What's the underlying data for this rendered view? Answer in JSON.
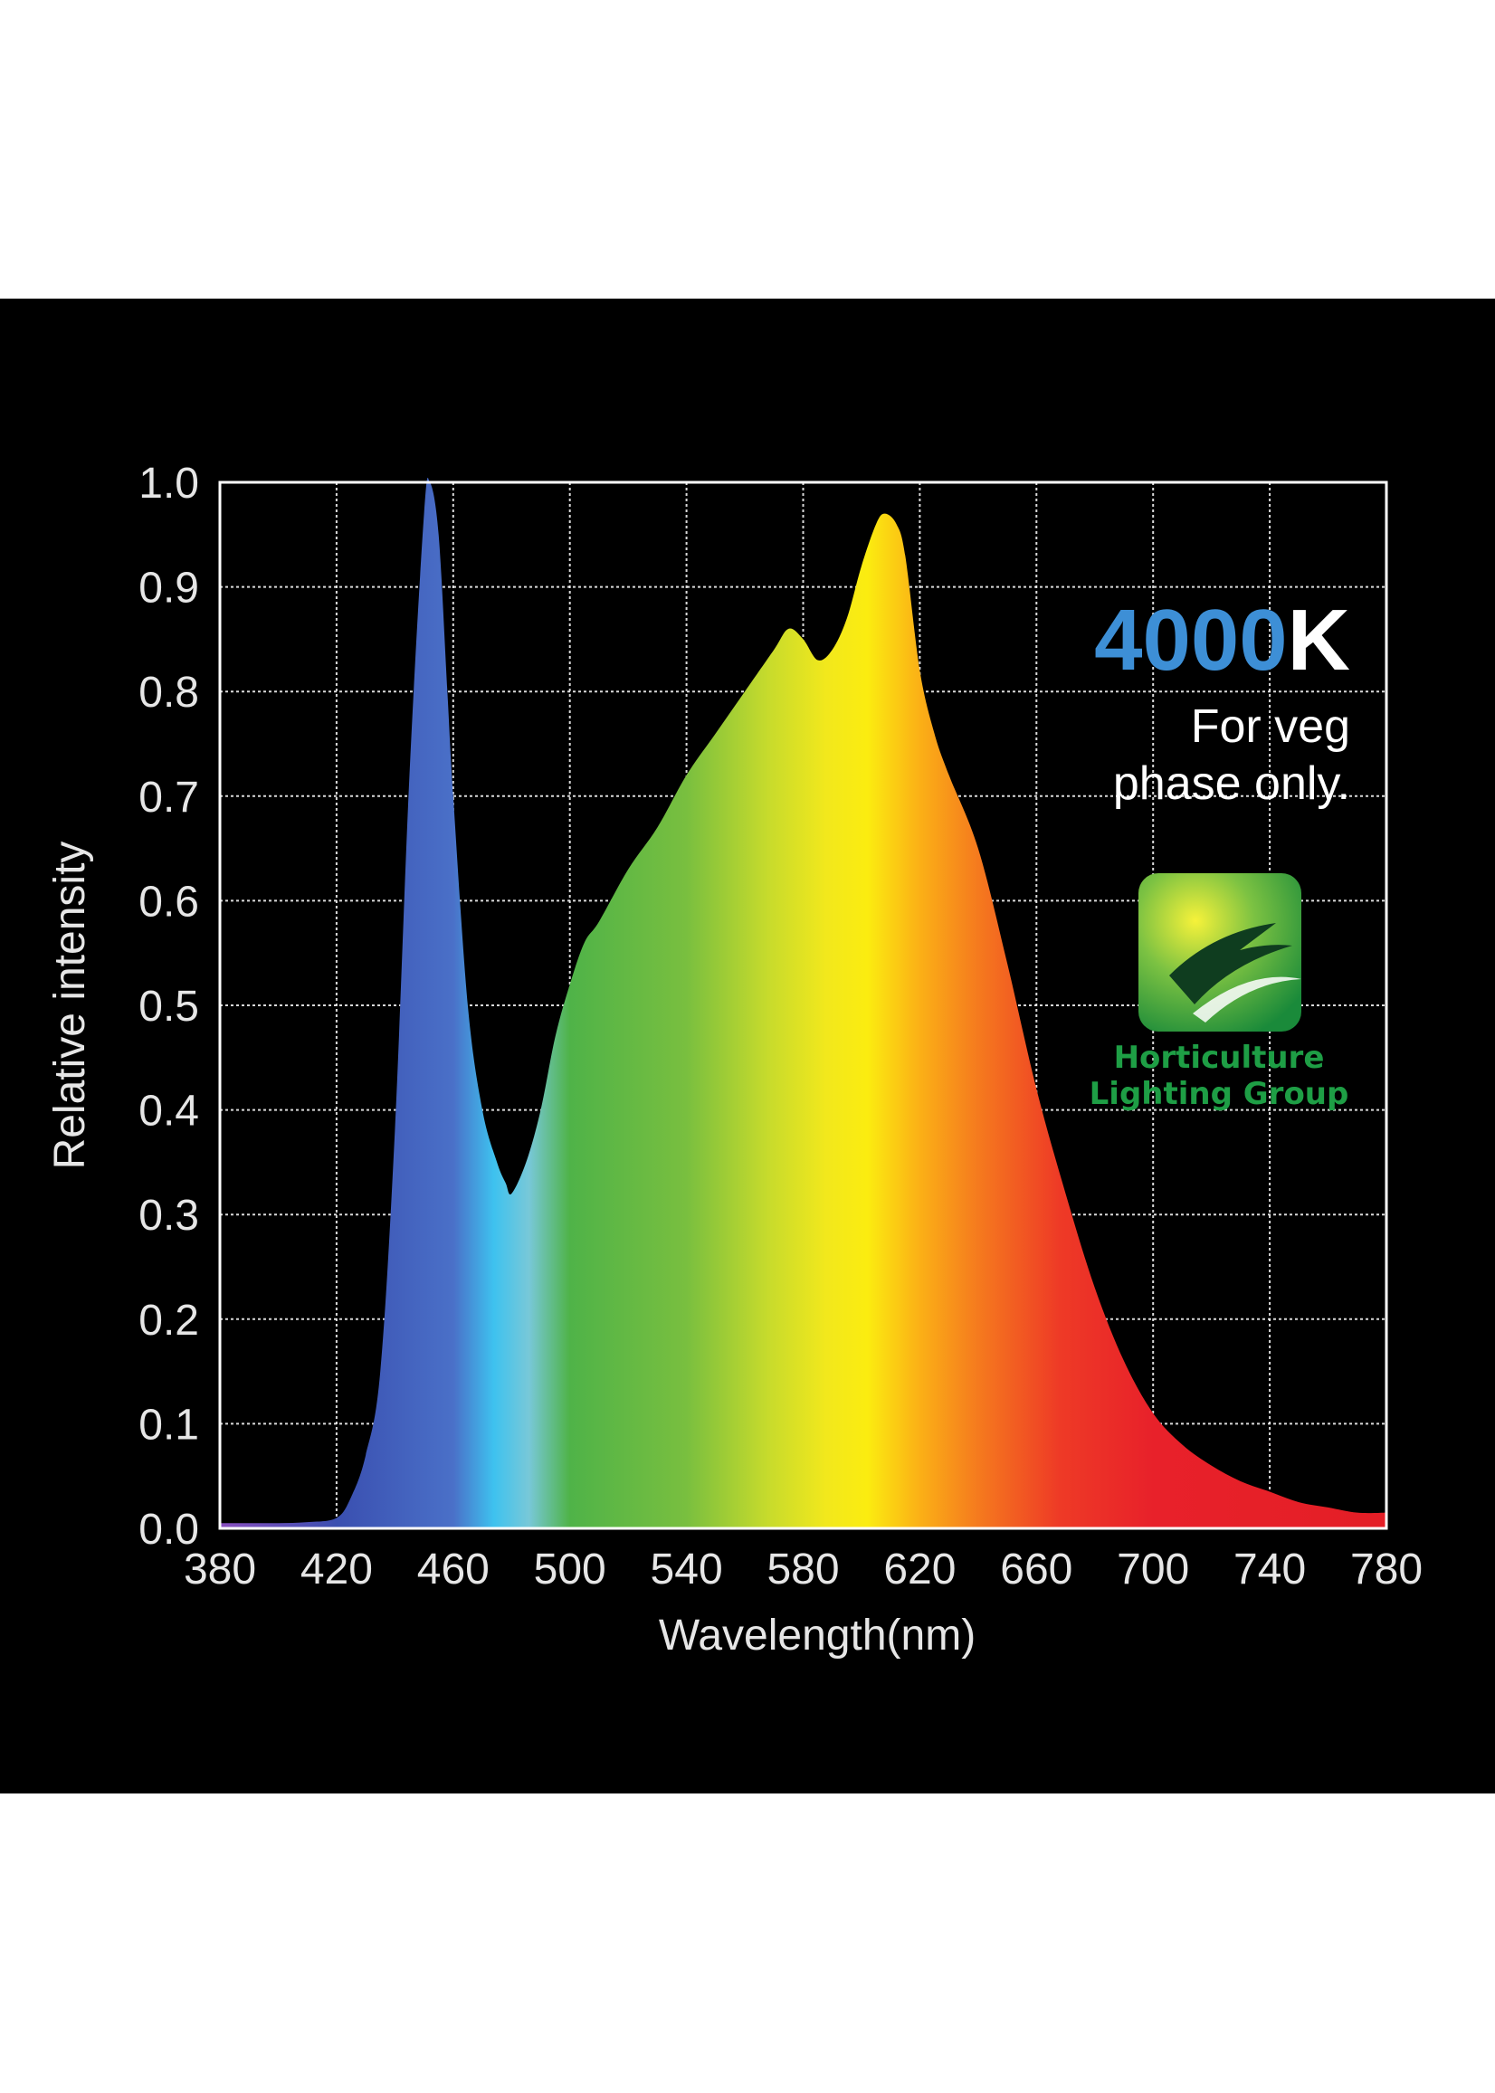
{
  "chart_data": {
    "type": "area",
    "xlabel": "Wavelength(nm)",
    "ylabel": "Relative intensity",
    "xlim": [
      380,
      780
    ],
    "ylim": [
      0.0,
      1.0
    ],
    "x_ticks": [
      "380",
      "420",
      "460",
      "500",
      "540",
      "580",
      "620",
      "660",
      "700",
      "740",
      "780"
    ],
    "y_ticks": [
      "0.0",
      "0.1",
      "0.2",
      "0.3",
      "0.4",
      "0.5",
      "0.6",
      "0.7",
      "0.8",
      "0.9",
      "1.0"
    ],
    "grid": true,
    "series": [
      {
        "x": [
          380,
          390,
          400,
          410,
          420,
          425,
          430,
          435,
          440,
          445,
          450,
          452,
          455,
          458,
          460,
          465,
          470,
          475,
          478,
          480,
          485,
          490,
          495,
          500,
          505,
          510,
          520,
          530,
          540,
          550,
          560,
          570,
          575,
          580,
          585,
          590,
          595,
          600,
          605,
          608,
          612,
          615,
          620,
          625,
          630,
          640,
          650,
          660,
          670,
          680,
          690,
          700,
          710,
          720,
          730,
          740,
          750,
          760,
          770,
          780
        ],
        "values": [
          0.005,
          0.005,
          0.005,
          0.006,
          0.01,
          0.03,
          0.07,
          0.15,
          0.38,
          0.72,
          0.97,
          1.0,
          0.95,
          0.8,
          0.7,
          0.5,
          0.4,
          0.35,
          0.33,
          0.32,
          0.35,
          0.4,
          0.47,
          0.52,
          0.56,
          0.58,
          0.63,
          0.67,
          0.72,
          0.76,
          0.8,
          0.84,
          0.86,
          0.85,
          0.83,
          0.84,
          0.87,
          0.92,
          0.96,
          0.97,
          0.96,
          0.93,
          0.82,
          0.76,
          0.72,
          0.65,
          0.54,
          0.42,
          0.32,
          0.23,
          0.16,
          0.11,
          0.08,
          0.06,
          0.045,
          0.035,
          0.025,
          0.02,
          0.015,
          0.015
        ]
      }
    ],
    "annotations": {
      "cct_number": "4000",
      "cct_unit": "K",
      "note_line1": "For veg",
      "note_line2": "phase only."
    }
  },
  "logo": {
    "line1": "Horticulture",
    "line2": "Lighting Group"
  },
  "colors": {
    "background": "#000000",
    "page": "#ffffff",
    "grid": "#ffffff",
    "cct_number": "#3d8fd6",
    "cct_unit": "#ffffff",
    "logo_text": "#1e9e45"
  }
}
